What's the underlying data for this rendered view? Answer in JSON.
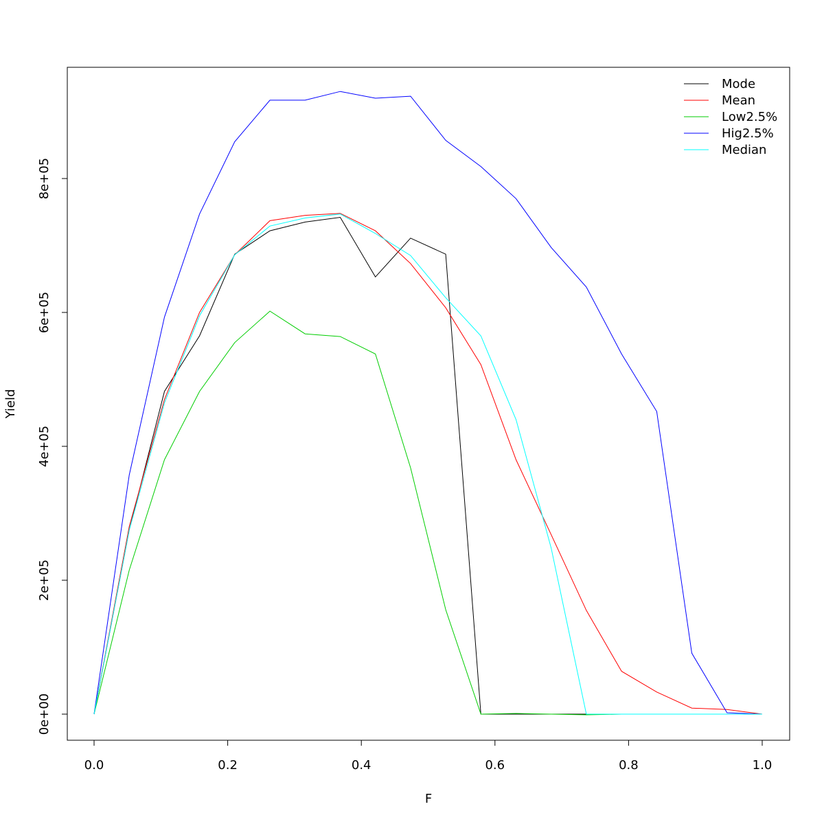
{
  "chart_data": {
    "type": "line",
    "title": "",
    "xlabel": "F",
    "ylabel": "Yield",
    "xlim": [
      0,
      1
    ],
    "ylim": [
      0,
      930000
    ],
    "grid": false,
    "legend_position": "top-right",
    "x_ticks": [
      "0.0",
      "0.2",
      "0.4",
      "0.6",
      "0.8",
      "1.0"
    ],
    "x_tick_values": [
      0,
      0.2,
      0.4,
      0.6,
      0.8,
      1.0
    ],
    "y_ticks": [
      "0e+00",
      "2e+05",
      "4e+05",
      "6e+05",
      "8e+05"
    ],
    "y_tick_values": [
      0,
      200000,
      400000,
      600000,
      800000
    ],
    "x": [
      0,
      0.0526,
      0.1053,
      0.1579,
      0.2105,
      0.2632,
      0.3158,
      0.3684,
      0.4211,
      0.4737,
      0.5263,
      0.5789,
      0.6316,
      0.6842,
      0.7368,
      0.7895,
      0.8421,
      0.8947,
      0.9474,
      1.0
    ],
    "series": [
      {
        "name": "Mode",
        "color": "#000000",
        "values": [
          0,
          275000,
          482000,
          565000,
          687000,
          722000,
          735000,
          742000,
          653000,
          711000,
          687000,
          0,
          0,
          0,
          0,
          0,
          0,
          0,
          0,
          0
        ]
      },
      {
        "name": "Mean",
        "color": "#ff0000",
        "values": [
          0,
          280000,
          470000,
          600000,
          686000,
          737000,
          745000,
          748000,
          722000,
          673000,
          607000,
          522000,
          380000,
          268000,
          155000,
          64000,
          33000,
          9000,
          7000,
          0
        ]
      },
      {
        "name": "Low2.5%",
        "color": "#00cd00",
        "values": [
          0,
          215000,
          380000,
          482000,
          555000,
          602000,
          568000,
          564000,
          538000,
          368000,
          156000,
          0,
          1000,
          0,
          -1000,
          0,
          0,
          0,
          0,
          0
        ]
      },
      {
        "name": "Hig2.5%",
        "color": "#0000ff",
        "values": [
          0,
          357000,
          593000,
          747000,
          855000,
          917000,
          917000,
          930000,
          920000,
          923000,
          857000,
          818000,
          770000,
          697000,
          638000,
          538000,
          452000,
          91000,
          2000,
          0
        ]
      },
      {
        "name": "Median",
        "color": "#00ffff",
        "values": [
          0,
          275000,
          465000,
          595000,
          686000,
          729000,
          741000,
          747000,
          718000,
          685000,
          622000,
          565000,
          440000,
          248000,
          0,
          0,
          0,
          0,
          0,
          0
        ]
      }
    ]
  }
}
